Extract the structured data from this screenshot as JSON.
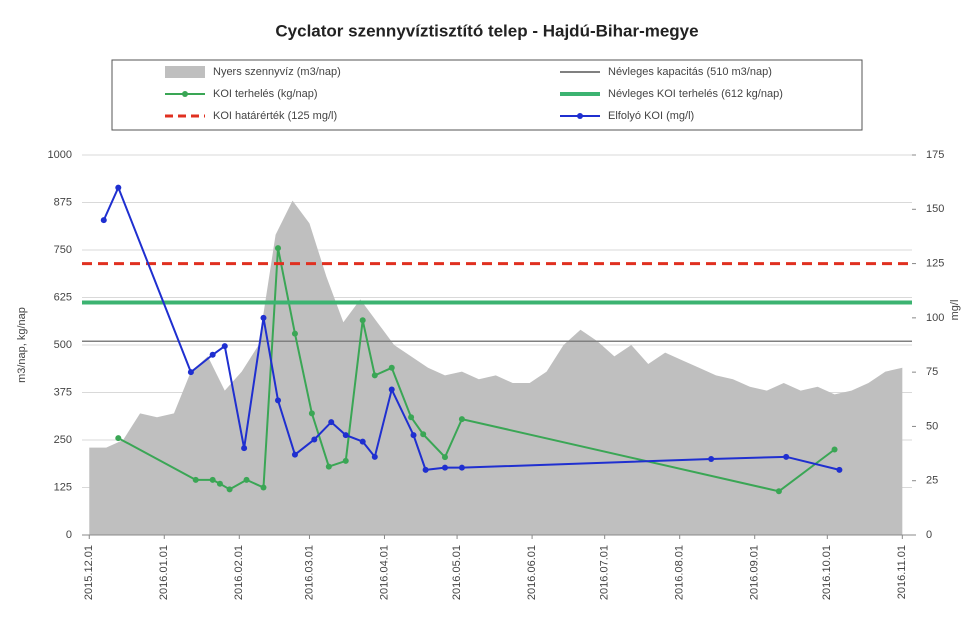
{
  "chart_data": {
    "type": "combo",
    "title": "Cyclator szennyvíztisztító telep - Hajdú-Bihar-megye",
    "ylabel": "m3/nap, kg/nap",
    "y2label": "mg/l",
    "ylim": [
      0,
      1000
    ],
    "yticks": [
      0,
      125,
      250,
      375,
      500,
      625,
      750,
      875,
      1000
    ],
    "y2lim": [
      0,
      175
    ],
    "y2ticks": [
      0,
      25,
      50,
      75,
      100,
      125,
      150,
      175
    ],
    "xlim": [
      "2015.11.28",
      "2016.11.05"
    ],
    "xticks": [
      "2015.12.01",
      "2016.01.01",
      "2016.02.01",
      "2016.03.01",
      "2016.04.01",
      "2016.05.01",
      "2016.06.01",
      "2016.07.01",
      "2016.08.01",
      "2016.09.01",
      "2016.10.01",
      "2016.11.01"
    ],
    "series": [
      {
        "name": "Nyers szennyvíz (m3/nap)",
        "kind": "area",
        "color": "#bfbfbf",
        "x": [
          "2015.12.01",
          "2015.12.08",
          "2015.12.15",
          "2015.12.22",
          "2015.12.29",
          "2016.01.05",
          "2016.01.12",
          "2016.01.19",
          "2016.01.26",
          "2016.02.02",
          "2016.02.09",
          "2016.02.16",
          "2016.02.23",
          "2016.03.01",
          "2016.03.08",
          "2016.03.15",
          "2016.03.22",
          "2016.03.29",
          "2016.04.05",
          "2016.04.12",
          "2016.04.19",
          "2016.04.26",
          "2016.05.03",
          "2016.05.10",
          "2016.05.17",
          "2016.05.24",
          "2016.05.31",
          "2016.06.07",
          "2016.06.14",
          "2016.06.21",
          "2016.06.28",
          "2016.07.05",
          "2016.07.12",
          "2016.07.19",
          "2016.07.26",
          "2016.08.02",
          "2016.08.09",
          "2016.08.16",
          "2016.08.23",
          "2016.08.30",
          "2016.09.06",
          "2016.09.13",
          "2016.09.20",
          "2016.09.27",
          "2016.10.04",
          "2016.10.11",
          "2016.10.18",
          "2016.10.25",
          "2016.11.01"
        ],
        "values": [
          230,
          230,
          250,
          320,
          310,
          320,
          430,
          470,
          380,
          430,
          500,
          790,
          880,
          820,
          680,
          560,
          620,
          560,
          500,
          470,
          440,
          420,
          430,
          410,
          420,
          400,
          400,
          430,
          500,
          540,
          510,
          470,
          500,
          450,
          480,
          460,
          440,
          420,
          410,
          390,
          380,
          400,
          380,
          390,
          370,
          380,
          400,
          430,
          440
        ]
      },
      {
        "name": "Névleges kapacitás (510 m3/nap)",
        "kind": "hline",
        "color": "#808080",
        "value": 510
      },
      {
        "name": "KOI terhelés (kg/nap)",
        "kind": "line",
        "color": "#3aa655",
        "x": [
          "2015.12.13",
          "2016.01.14",
          "2016.01.21",
          "2016.01.24",
          "2016.01.28",
          "2016.02.04",
          "2016.02.11",
          "2016.02.17",
          "2016.02.24",
          "2016.03.02",
          "2016.03.09",
          "2016.03.16",
          "2016.03.23",
          "2016.03.28",
          "2016.04.04",
          "2016.04.12",
          "2016.04.17",
          "2016.04.26",
          "2016.05.03",
          "2016.09.11",
          "2016.10.04"
        ],
        "values": [
          255,
          145,
          145,
          135,
          120,
          145,
          125,
          755,
          530,
          320,
          180,
          195,
          565,
          420,
          440,
          310,
          265,
          205,
          305,
          115,
          225
        ]
      },
      {
        "name": "Névleges KOI terhelés (612 kg/nap)",
        "kind": "hline",
        "color": "#3cb371",
        "value": 612
      },
      {
        "name": "KOI határérték (125 mg/l)",
        "kind": "hline",
        "color": "#e03020",
        "dashed": true,
        "axis": "y2",
        "value": 125
      },
      {
        "name": "Elfolyó KOI (mg/l)",
        "kind": "line",
        "color": "#1f2fd0",
        "axis": "y2",
        "x": [
          "2015.12.07",
          "2015.12.13",
          "2016.01.12",
          "2016.01.21",
          "2016.01.26",
          "2016.02.03",
          "2016.02.11",
          "2016.02.17",
          "2016.02.24",
          "2016.03.03",
          "2016.03.10",
          "2016.03.16",
          "2016.03.23",
          "2016.03.28",
          "2016.04.04",
          "2016.04.13",
          "2016.04.18",
          "2016.04.26",
          "2016.05.03",
          "2016.08.14",
          "2016.09.14",
          "2016.10.06"
        ],
        "values": [
          145,
          160,
          75,
          83,
          87,
          40,
          100,
          62,
          37,
          44,
          52,
          46,
          43,
          36,
          67,
          46,
          30,
          31,
          31,
          35,
          36,
          30
        ]
      }
    ]
  }
}
